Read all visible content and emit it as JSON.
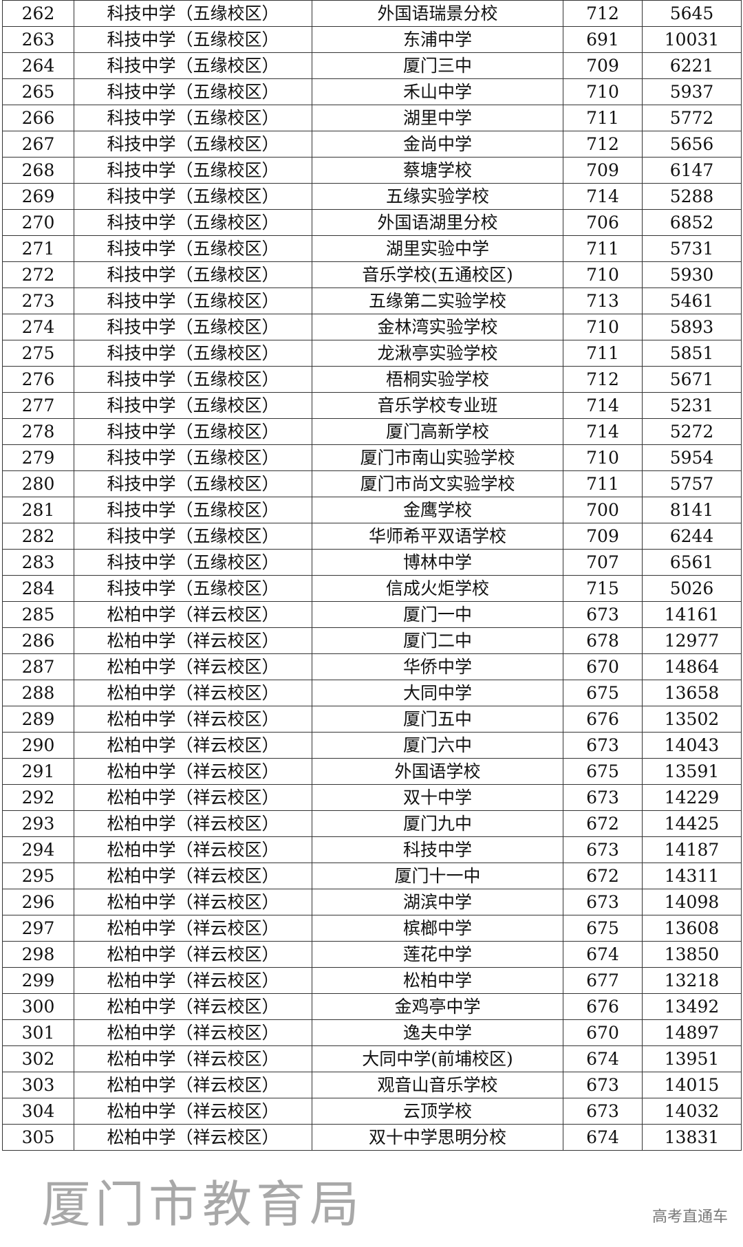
{
  "watermark": "厦门市教育局",
  "corner_watermark": "高考直通车",
  "rows": [
    [
      "262",
      "科技中学（五缘校区）",
      "外国语瑞景分校",
      "712",
      "5645"
    ],
    [
      "263",
      "科技中学（五缘校区）",
      "东浦中学",
      "691",
      "10031"
    ],
    [
      "264",
      "科技中学（五缘校区）",
      "厦门三中",
      "709",
      "6221"
    ],
    [
      "265",
      "科技中学（五缘校区）",
      "禾山中学",
      "710",
      "5937"
    ],
    [
      "266",
      "科技中学（五缘校区）",
      "湖里中学",
      "711",
      "5772"
    ],
    [
      "267",
      "科技中学（五缘校区）",
      "金尚中学",
      "712",
      "5656"
    ],
    [
      "268",
      "科技中学（五缘校区）",
      "蔡塘学校",
      "709",
      "6147"
    ],
    [
      "269",
      "科技中学（五缘校区）",
      "五缘实验学校",
      "714",
      "5288"
    ],
    [
      "270",
      "科技中学（五缘校区）",
      "外国语湖里分校",
      "706",
      "6852"
    ],
    [
      "271",
      "科技中学（五缘校区）",
      "湖里实验中学",
      "711",
      "5731"
    ],
    [
      "272",
      "科技中学（五缘校区）",
      "音乐学校(五通校区)",
      "710",
      "5930"
    ],
    [
      "273",
      "科技中学（五缘校区）",
      "五缘第二实验学校",
      "713",
      "5461"
    ],
    [
      "274",
      "科技中学（五缘校区）",
      "金林湾实验学校",
      "710",
      "5893"
    ],
    [
      "275",
      "科技中学（五缘校区）",
      "龙湫亭实验学校",
      "711",
      "5851"
    ],
    [
      "276",
      "科技中学（五缘校区）",
      "梧桐实验学校",
      "712",
      "5671"
    ],
    [
      "277",
      "科技中学（五缘校区）",
      "音乐学校专业班",
      "714",
      "5231"
    ],
    [
      "278",
      "科技中学（五缘校区）",
      "厦门高新学校",
      "714",
      "5272"
    ],
    [
      "279",
      "科技中学（五缘校区）",
      "厦门市南山实验学校",
      "710",
      "5954"
    ],
    [
      "280",
      "科技中学（五缘校区）",
      "厦门市尚文实验学校",
      "711",
      "5757"
    ],
    [
      "281",
      "科技中学（五缘校区）",
      "金鹰学校",
      "700",
      "8141"
    ],
    [
      "282",
      "科技中学（五缘校区）",
      "华师希平双语学校",
      "709",
      "6244"
    ],
    [
      "283",
      "科技中学（五缘校区）",
      "博林中学",
      "707",
      "6561"
    ],
    [
      "284",
      "科技中学（五缘校区）",
      "信成火炬学校",
      "715",
      "5026"
    ],
    [
      "285",
      "松柏中学（祥云校区）",
      "厦门一中",
      "673",
      "14161"
    ],
    [
      "286",
      "松柏中学（祥云校区）",
      "厦门二中",
      "678",
      "12977"
    ],
    [
      "287",
      "松柏中学（祥云校区）",
      "华侨中学",
      "670",
      "14864"
    ],
    [
      "288",
      "松柏中学（祥云校区）",
      "大同中学",
      "675",
      "13658"
    ],
    [
      "289",
      "松柏中学（祥云校区）",
      "厦门五中",
      "676",
      "13502"
    ],
    [
      "290",
      "松柏中学（祥云校区）",
      "厦门六中",
      "673",
      "14043"
    ],
    [
      "291",
      "松柏中学（祥云校区）",
      "外国语学校",
      "675",
      "13591"
    ],
    [
      "292",
      "松柏中学（祥云校区）",
      "双十中学",
      "673",
      "14229"
    ],
    [
      "293",
      "松柏中学（祥云校区）",
      "厦门九中",
      "672",
      "14425"
    ],
    [
      "294",
      "松柏中学（祥云校区）",
      "科技中学",
      "673",
      "14187"
    ],
    [
      "295",
      "松柏中学（祥云校区）",
      "厦门十一中",
      "672",
      "14311"
    ],
    [
      "296",
      "松柏中学（祥云校区）",
      "湖滨中学",
      "673",
      "14098"
    ],
    [
      "297",
      "松柏中学（祥云校区）",
      "槟榔中学",
      "675",
      "13608"
    ],
    [
      "298",
      "松柏中学（祥云校区）",
      "莲花中学",
      "674",
      "13850"
    ],
    [
      "299",
      "松柏中学（祥云校区）",
      "松柏中学",
      "677",
      "13218"
    ],
    [
      "300",
      "松柏中学（祥云校区）",
      "金鸡亭中学",
      "676",
      "13492"
    ],
    [
      "301",
      "松柏中学（祥云校区）",
      "逸夫中学",
      "670",
      "14897"
    ],
    [
      "302",
      "松柏中学（祥云校区）",
      "大同中学(前埔校区)",
      "674",
      "13951"
    ],
    [
      "303",
      "松柏中学（祥云校区）",
      "观音山音乐学校",
      "673",
      "14015"
    ],
    [
      "304",
      "松柏中学（祥云校区）",
      "云顶学校",
      "673",
      "14032"
    ],
    [
      "305",
      "松柏中学（祥云校区）",
      "双十中学思明分校",
      "674",
      "13831"
    ]
  ]
}
